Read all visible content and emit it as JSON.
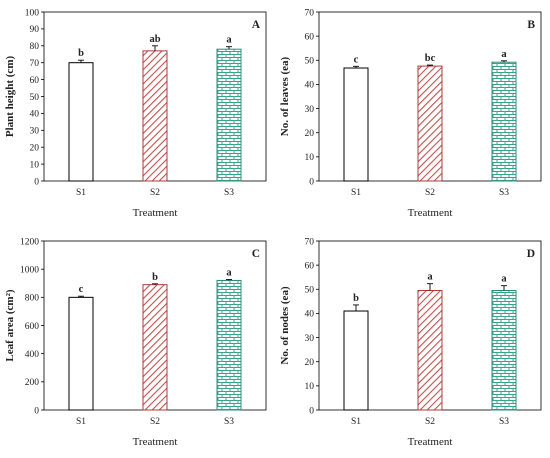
{
  "colors": {
    "S1_fill": "#ffffff",
    "S1_stroke": "#000000",
    "S2_stroke": "#b03a3a",
    "S2_hatch": "#c0504d",
    "S3_stroke": "#2e8b7a",
    "S3_brick": "#3aa38c",
    "axis": "#000000"
  },
  "chart_data": [
    {
      "type": "bar",
      "panel_label": "A",
      "categories": [
        "S1",
        "S2",
        "S3"
      ],
      "values": [
        70,
        77,
        78
      ],
      "errors": [
        1.5,
        3,
        1.5
      ],
      "letters": [
        "b",
        "ab",
        "a"
      ],
      "xlabel": "Treatment",
      "ylabel": "Plant height (cm)",
      "ylim": [
        0,
        100
      ],
      "yticks": [
        0,
        10,
        20,
        30,
        40,
        50,
        60,
        70,
        80,
        90,
        100
      ],
      "grid": false,
      "legend": "none"
    },
    {
      "type": "bar",
      "panel_label": "B",
      "categories": [
        "S1",
        "S2",
        "S3"
      ],
      "values": [
        46.8,
        47.6,
        49.2
      ],
      "errors": [
        0.7,
        0.4,
        0.6
      ],
      "letters": [
        "c",
        "bc",
        "a"
      ],
      "xlabel": "Treatment",
      "ylabel": "No. of leaves (ea)",
      "ylim": [
        0,
        70
      ],
      "yticks": [
        0,
        10,
        20,
        30,
        40,
        50,
        60,
        70
      ],
      "grid": false,
      "legend": "none"
    },
    {
      "type": "bar",
      "panel_label": "C",
      "categories": [
        "S1",
        "S2",
        "S3"
      ],
      "values": [
        800,
        890,
        920
      ],
      "errors": [
        8,
        6,
        6
      ],
      "letters": [
        "c",
        "b",
        "a"
      ],
      "xlabel": "Treatment",
      "ylabel": "Leaf area (cm²)",
      "ylim": [
        0,
        1200
      ],
      "yticks": [
        0,
        200,
        400,
        600,
        800,
        1000,
        1200
      ],
      "grid": false,
      "legend": "none"
    },
    {
      "type": "bar",
      "panel_label": "D",
      "categories": [
        "S1",
        "S2",
        "S3"
      ],
      "values": [
        41,
        49.5,
        49.5
      ],
      "errors": [
        2.5,
        2.8,
        2
      ],
      "letters": [
        "b",
        "a",
        "a"
      ],
      "xlabel": "Treatment",
      "ylabel": "No. of nodes (ea)",
      "ylim": [
        0,
        70
      ],
      "yticks": [
        0,
        10,
        20,
        30,
        40,
        50,
        60,
        70
      ],
      "grid": false,
      "legend": "none"
    }
  ]
}
